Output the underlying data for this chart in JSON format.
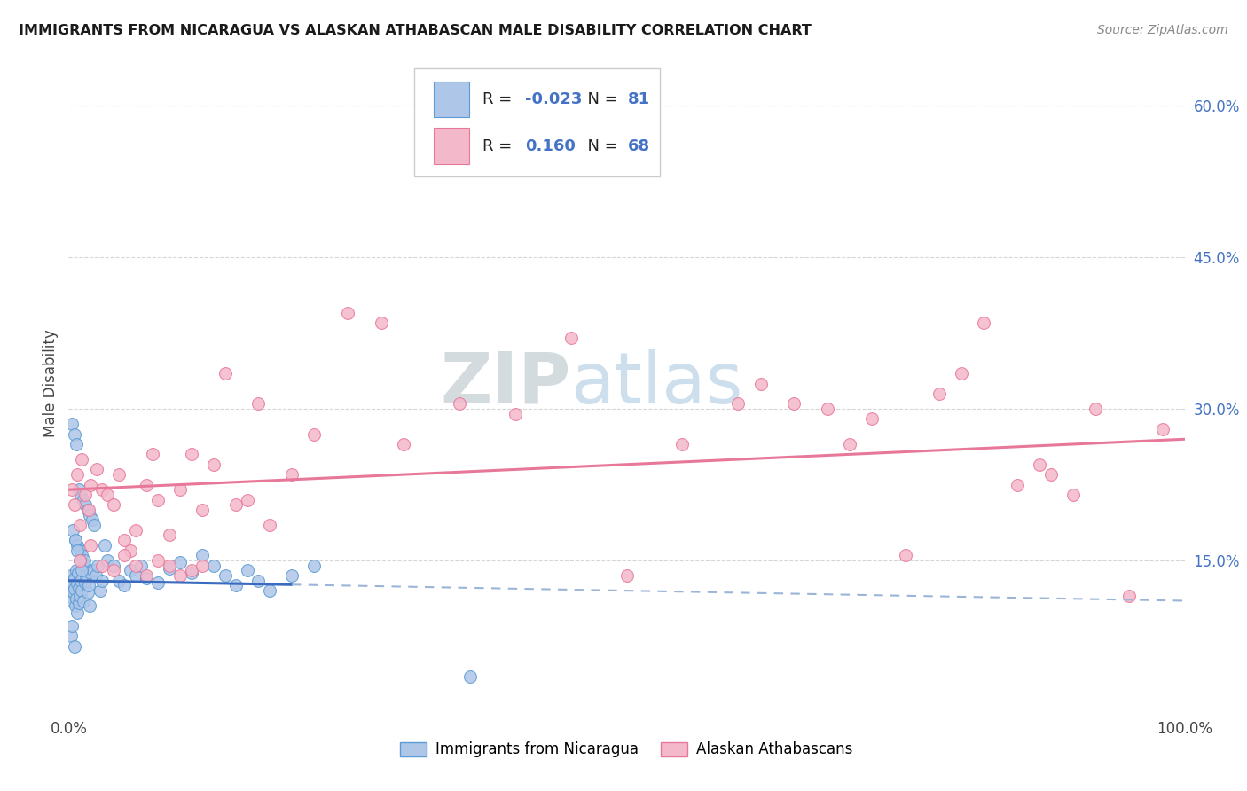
{
  "title": "IMMIGRANTS FROM NICARAGUA VS ALASKAN ATHABASCAN MALE DISABILITY CORRELATION CHART",
  "source": "Source: ZipAtlas.com",
  "ylabel": "Male Disability",
  "xlim": [
    0.0,
    100.0
  ],
  "ylim": [
    0.0,
    65.0
  ],
  "xticks": [
    0.0,
    20.0,
    40.0,
    60.0,
    80.0,
    100.0
  ],
  "xtick_labels": [
    "0.0%",
    "",
    "",
    "",
    "",
    "100.0%"
  ],
  "yticks": [
    15.0,
    30.0,
    45.0,
    60.0
  ],
  "ytick_labels": [
    "15.0%",
    "30.0%",
    "45.0%",
    "60.0%"
  ],
  "series1_label": "Immigrants from Nicaragua",
  "series1_color": "#aec6e8",
  "series1_edge": "#5b9bd5",
  "series2_label": "Alaskan Athabascans",
  "series2_color": "#f4b8cb",
  "series2_edge": "#e8789a",
  "watermark_text": "ZIPatlas",
  "watermark_color": "#c8d8ec",
  "background_color": "#ffffff",
  "grid_color": "#cccccc",
  "trend1_color": "#3a6bbf",
  "trend1_dash_color": "#9ab5d8",
  "trend2_color": "#e8789a",
  "legend_R1": "-0.023",
  "legend_N1": "81",
  "legend_R2": "0.160",
  "legend_N2": "68",
  "series1_x": [
    0.1,
    0.15,
    0.2,
    0.25,
    0.3,
    0.35,
    0.4,
    0.45,
    0.5,
    0.55,
    0.6,
    0.65,
    0.7,
    0.75,
    0.8,
    0.85,
    0.9,
    0.95,
    1.0,
    1.1,
    1.2,
    1.3,
    1.4,
    1.5,
    1.6,
    1.7,
    1.8,
    1.9,
    2.0,
    2.2,
    2.4,
    2.6,
    2.8,
    3.0,
    3.5,
    4.0,
    4.5,
    5.0,
    5.5,
    6.0,
    6.5,
    7.0,
    8.0,
    9.0,
    10.0,
    11.0,
    12.0,
    13.0,
    14.0,
    15.0,
    16.0,
    17.0,
    18.0,
    20.0,
    22.0,
    3.2,
    0.3,
    0.5,
    0.7,
    0.9,
    1.1,
    1.3,
    1.5,
    1.7,
    1.9,
    2.1,
    2.3,
    0.6,
    0.8,
    1.0,
    1.2,
    1.4,
    0.4,
    0.6,
    0.8,
    1.0,
    1.2,
    0.2,
    0.3,
    0.5,
    36.0
  ],
  "series1_y": [
    12.0,
    11.5,
    13.5,
    12.5,
    11.0,
    13.0,
    12.8,
    11.8,
    13.2,
    12.2,
    10.5,
    14.0,
    11.2,
    12.7,
    9.8,
    13.8,
    10.8,
    12.3,
    11.5,
    13.0,
    12.0,
    11.0,
    14.5,
    12.8,
    13.5,
    11.8,
    12.5,
    10.5,
    13.8,
    14.0,
    13.5,
    14.5,
    12.0,
    13.0,
    15.0,
    14.5,
    13.0,
    12.5,
    14.0,
    13.5,
    14.5,
    13.2,
    12.8,
    14.2,
    14.8,
    13.8,
    15.5,
    14.5,
    13.5,
    12.5,
    14.0,
    13.0,
    12.0,
    13.5,
    14.5,
    16.5,
    28.5,
    27.5,
    26.5,
    22.0,
    21.5,
    21.0,
    20.5,
    20.0,
    19.5,
    19.0,
    18.5,
    17.0,
    16.5,
    16.0,
    15.5,
    15.0,
    18.0,
    17.0,
    16.0,
    15.0,
    14.0,
    7.5,
    8.5,
    6.5,
    3.5
  ],
  "series2_x": [
    0.3,
    0.5,
    0.8,
    1.0,
    1.2,
    1.5,
    1.8,
    2.0,
    2.5,
    3.0,
    3.5,
    4.0,
    4.5,
    5.0,
    5.5,
    6.0,
    7.0,
    7.5,
    8.0,
    9.0,
    10.0,
    11.0,
    12.0,
    13.0,
    14.0,
    15.0,
    16.0,
    17.0,
    18.0,
    20.0,
    22.0,
    25.0,
    28.0,
    30.0,
    35.0,
    40.0,
    45.0,
    50.0,
    55.0,
    60.0,
    62.0,
    65.0,
    68.0,
    70.0,
    72.0,
    75.0,
    78.0,
    80.0,
    82.0,
    85.0,
    87.0,
    88.0,
    90.0,
    92.0,
    95.0,
    98.0,
    1.0,
    2.0,
    3.0,
    4.0,
    5.0,
    6.0,
    7.0,
    8.0,
    9.0,
    10.0,
    11.0,
    12.0
  ],
  "series2_y": [
    22.0,
    20.5,
    23.5,
    18.5,
    25.0,
    21.5,
    20.0,
    22.5,
    24.0,
    22.0,
    21.5,
    20.5,
    23.5,
    17.0,
    16.0,
    18.0,
    22.5,
    25.5,
    21.0,
    17.5,
    22.0,
    25.5,
    20.0,
    24.5,
    33.5,
    20.5,
    21.0,
    30.5,
    18.5,
    23.5,
    27.5,
    39.5,
    38.5,
    26.5,
    30.5,
    29.5,
    37.0,
    13.5,
    26.5,
    30.5,
    32.5,
    30.5,
    30.0,
    26.5,
    29.0,
    15.5,
    31.5,
    33.5,
    38.5,
    22.5,
    24.5,
    23.5,
    21.5,
    30.0,
    11.5,
    28.0,
    15.0,
    16.5,
    14.5,
    14.0,
    15.5,
    14.5,
    13.5,
    15.0,
    14.5,
    13.5,
    14.0,
    14.5
  ]
}
